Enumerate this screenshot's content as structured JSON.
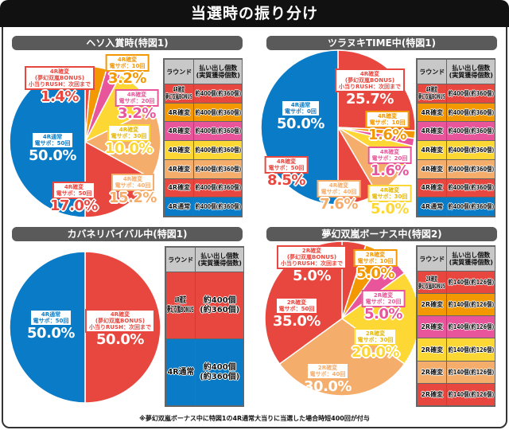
{
  "title": "当選時の振り分け",
  "colors": {
    "red": "#e8473f",
    "orange": "#f39800",
    "pink": "#e8559a",
    "yellow": "#fdd835",
    "lightorange": "#f5ad6b",
    "blue": "#0a7cc7"
  },
  "table_headers": [
    "ラウンド",
    "払い出し個数\n(実質獲得個数)"
  ],
  "footnote": "※夢幻双嵐ボーナス中に特図1の4R通常大当りに当選した場合時短400回が付与",
  "chart_data": [
    {
      "type": "pie",
      "title": "ヘソ入賞時(特図1)",
      "start": "top",
      "direction": "clockwise",
      "slices": [
        {
          "label": "4R確変\n(夢幻双嵐BONUS)\n小当りRUSH：次回まで",
          "value": 1.4,
          "display": "1.4%",
          "color": "#e8473f"
        },
        {
          "label": "4R確変\n電サポ：10回",
          "value": 3.2,
          "display": "3.2%",
          "color": "#f39800"
        },
        {
          "label": "4R確変\n電サポ：20回",
          "value": 3.2,
          "display": "3.2%",
          "color": "#e8559a"
        },
        {
          "label": "4R確変\n電サポ：30回",
          "value": 10.0,
          "display": "10.0%",
          "color": "#fdd835"
        },
        {
          "label": "4R確変\n電サポ：40回",
          "value": 15.2,
          "display": "15.2%",
          "color": "#f5ad6b"
        },
        {
          "label": "4R確変\n電サポ：50回",
          "value": 17.0,
          "display": "17.0%",
          "color": "#e8473f"
        },
        {
          "label": "4R通常\n電サポ：50回",
          "value": 50.0,
          "display": "50.0%",
          "color": "#0a7cc7"
        }
      ],
      "table": [
        {
          "round": "4R確変\n夢幻双嵐BONUS",
          "payout": "約400個(約360個)",
          "color": "#e8473f"
        },
        {
          "round": "4R確変",
          "payout": "約400個(約360個)",
          "color": "#f39800"
        },
        {
          "round": "4R確変",
          "payout": "約400個(約360個)",
          "color": "#e8559a"
        },
        {
          "round": "4R確変",
          "payout": "約400個(約360個)",
          "color": "#fdd835"
        },
        {
          "round": "4R確変",
          "payout": "約400個(約360個)",
          "color": "#f5ad6b"
        },
        {
          "round": "4R確変",
          "payout": "約400個(約360個)",
          "color": "#e8473f"
        },
        {
          "round": "4R通常",
          "payout": "約400個(約360個)",
          "color": "#0a7cc7"
        }
      ]
    },
    {
      "type": "pie",
      "title": "ツラヌキTIME中(特図1)",
      "start": "top",
      "direction": "clockwise",
      "slices": [
        {
          "label": "4R確変\n(夢幻双嵐BONUS)\n小当りRUSH：次回まで",
          "value": 25.7,
          "display": "25.7%",
          "color": "#e8473f"
        },
        {
          "label": "4R確変\n電サポ：10回",
          "value": 1.6,
          "display": "1.6%",
          "color": "#f39800"
        },
        {
          "label": "4R確変\n電サポ：20回",
          "value": 1.6,
          "display": "1.6%",
          "color": "#e8559a"
        },
        {
          "label": "4R確変\n電サポ：30回",
          "value": 5.0,
          "display": "5.0%",
          "color": "#fdd835"
        },
        {
          "label": "4R確変\n電サポ：40回",
          "value": 7.6,
          "display": "7.6%",
          "color": "#f5ad6b"
        },
        {
          "label": "4R確変\n電サポ：50回",
          "value": 8.5,
          "display": "8.5%",
          "color": "#e8473f"
        },
        {
          "label": "4R通常\n電サポ：0回",
          "value": 50.0,
          "display": "50.0%",
          "color": "#0a7cc7"
        }
      ],
      "table": [
        {
          "round": "4R確変\n夢幻双嵐BONUS",
          "payout": "約400個(約360個)",
          "color": "#e8473f"
        },
        {
          "round": "4R確変",
          "payout": "約400個(約360個)",
          "color": "#f39800"
        },
        {
          "round": "4R確変",
          "payout": "約400個(約360個)",
          "color": "#e8559a"
        },
        {
          "round": "4R確変",
          "payout": "約400個(約360個)",
          "color": "#fdd835"
        },
        {
          "round": "4R確変",
          "payout": "約400個(約360個)",
          "color": "#f5ad6b"
        },
        {
          "round": "4R確変",
          "payout": "約400個(約360個)",
          "color": "#e8473f"
        },
        {
          "round": "4R通常",
          "payout": "約400個(約360個)",
          "color": "#0a7cc7"
        }
      ]
    },
    {
      "type": "pie",
      "title": "カバネリバイバル中(特図1)",
      "start": "top",
      "direction": "clockwise",
      "slices": [
        {
          "label": "4R確変\n(夢幻双嵐BONUS)\n小当りRUSH：次回まで",
          "value": 50.0,
          "display": "50.0%",
          "color": "#e8473f"
        },
        {
          "label": "4R通常\n電サポ：50回",
          "value": 50.0,
          "display": "50.0%",
          "color": "#0a7cc7"
        }
      ],
      "table": [
        {
          "round": "4R確変\n夢幻双嵐BONUS",
          "payout": "約400個\n(約360個)",
          "color": "#e8473f"
        },
        {
          "round": "4R通常",
          "payout": "約400個\n(約360個)",
          "color": "#0a7cc7"
        }
      ]
    },
    {
      "type": "pie",
      "title": "夢幻双嵐ボーナス中(特図2)",
      "start": "top",
      "direction": "clockwise",
      "slices": [
        {
          "label": "2R確変\n(夢幻双嵐BONUS)\n小当りRUSH：次回まで",
          "value": 5.0,
          "display": "5.0%",
          "color": "#e8473f"
        },
        {
          "label": "2R確変\n電サポ：10回",
          "value": 5.0,
          "display": "5.0%",
          "color": "#f39800"
        },
        {
          "label": "2R確変\n電サポ：20回",
          "value": 5.0,
          "display": "5.0%",
          "color": "#e8559a"
        },
        {
          "label": "2R確変\n電サポ：30回",
          "value": 20.0,
          "display": "20.0%",
          "color": "#fdd835"
        },
        {
          "label": "2R確変\n電サポ：40回",
          "value": 30.0,
          "display": "30.0%",
          "color": "#f5ad6b"
        },
        {
          "label": "2R確変\n電サポ：50回",
          "value": 35.0,
          "display": "35.0%",
          "color": "#e8473f"
        }
      ],
      "table": [
        {
          "round": "2R確変\n夢幻双嵐BONUS",
          "payout": "約140個(約126個)",
          "color": "#e8473f"
        },
        {
          "round": "2R確変",
          "payout": "約140個(約126個)",
          "color": "#f39800"
        },
        {
          "round": "2R確変",
          "payout": "約140個(約126個)",
          "color": "#e8559a"
        },
        {
          "round": "2R確変",
          "payout": "約140個(約126個)",
          "color": "#fdd835"
        },
        {
          "round": "2R確変",
          "payout": "約140個(約126個)",
          "color": "#f5ad6b"
        },
        {
          "round": "2R確変",
          "payout": "約140個(約126個)",
          "color": "#e8473f"
        }
      ]
    }
  ]
}
